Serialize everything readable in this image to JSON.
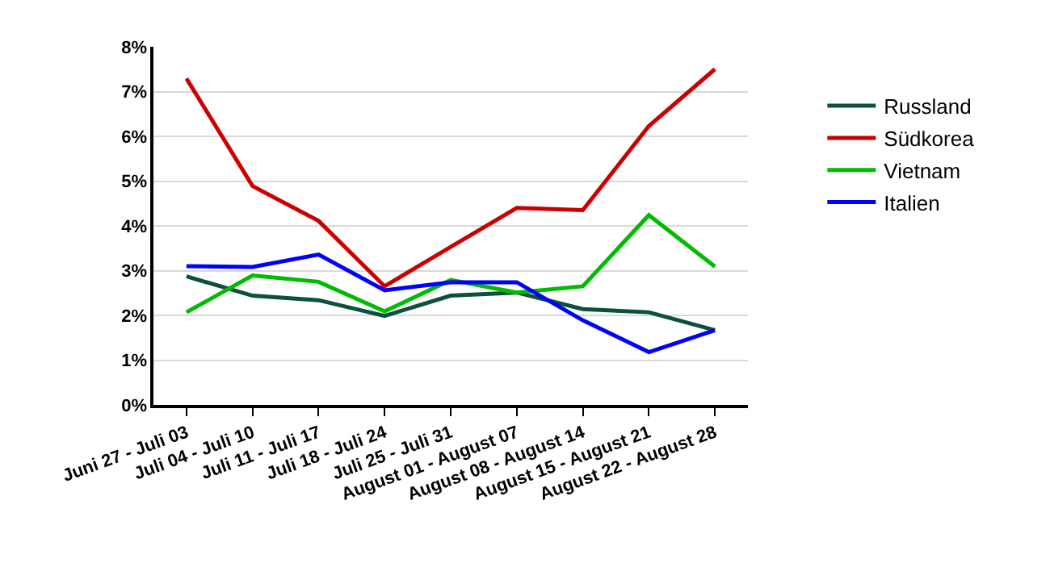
{
  "chart_data": {
    "type": "line",
    "categories": [
      "Juni 27 - Juli 03",
      "Juli 04 - Juli 10",
      "Juli 11 - Juli 17",
      "Juli 18 - Juli 24",
      "Juli 25 - Juli 31",
      "August 01 - August 07",
      "August 08 - August 14",
      "August 15 - August 21",
      "August 22 - August 28"
    ],
    "series": [
      {
        "name": "Russland",
        "color": "#0d5040",
        "values": [
          2.87,
          2.44,
          2.34,
          1.99,
          2.44,
          2.51,
          2.14,
          2.07,
          1.67
        ]
      },
      {
        "name": "Südkorea",
        "color": "#cc0000",
        "values": [
          7.29,
          4.89,
          4.11,
          2.65,
          3.53,
          4.4,
          4.35,
          6.23,
          7.5
        ]
      },
      {
        "name": "Vietnam",
        "color": "#00bb00",
        "values": [
          2.07,
          2.89,
          2.75,
          2.09,
          2.79,
          2.51,
          2.65,
          4.24,
          3.09
        ]
      },
      {
        "name": "Italien",
        "color": "#0000ff",
        "values": [
          3.1,
          3.08,
          3.36,
          2.56,
          2.74,
          2.74,
          1.89,
          1.18,
          1.67
        ]
      }
    ],
    "ylim": [
      0,
      8
    ],
    "yticks": [
      {
        "value": 0,
        "label": "0%"
      },
      {
        "value": 1,
        "label": "1%"
      },
      {
        "value": 2,
        "label": "2%"
      },
      {
        "value": 3,
        "label": "3%"
      },
      {
        "value": 4,
        "label": "4%"
      },
      {
        "value": 5,
        "label": "5%"
      },
      {
        "value": 6,
        "label": "6%"
      },
      {
        "value": 7,
        "label": "7%"
      },
      {
        "value": 8,
        "label": "8%"
      }
    ],
    "grid": "y",
    "legend": "right",
    "marker": "none",
    "line_style": "solid"
  }
}
